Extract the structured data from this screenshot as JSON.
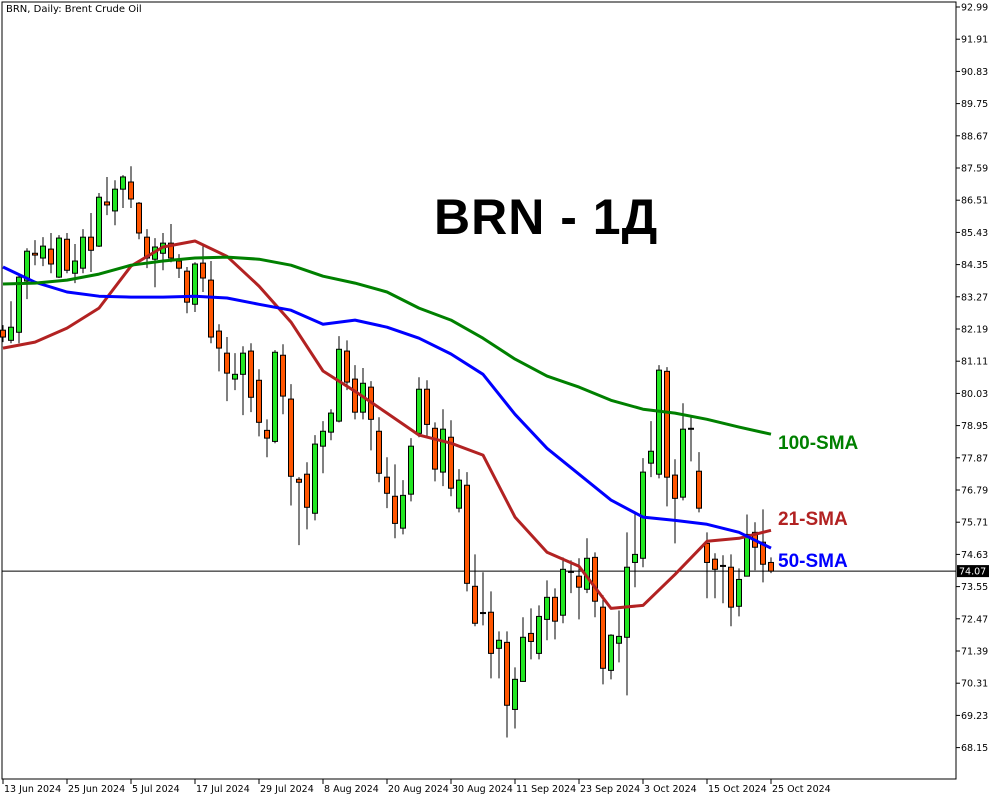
{
  "header": {
    "symbol_line": "BRN, Daily:  Brent Crude Oil"
  },
  "overlay_title": "BRN - 1Д",
  "colors": {
    "bull": "#22e622",
    "bear": "#ff5500",
    "sma21": "#b22222",
    "sma50": "#0000ff",
    "sma100": "#008000",
    "current_price_bg": "#000000"
  },
  "chart_data": {
    "type": "candlestick",
    "title": "BRN, Daily:  Brent Crude Oil",
    "ylim": [
      67.6,
      93.2
    ],
    "y_ticks": [
      "92.99",
      "91.91",
      "90.83",
      "89.75",
      "88.67",
      "87.59",
      "86.51",
      "85.43",
      "84.35",
      "83.27",
      "82.19",
      "81.11",
      "80.03",
      "78.95",
      "77.87",
      "76.79",
      "75.71",
      "74.63",
      "73.55",
      "72.47",
      "71.39",
      "70.31",
      "69.23",
      "68.15"
    ],
    "x_ticks": [
      {
        "date": "2024-06-13",
        "label": "13 Jun 2024"
      },
      {
        "date": "2024-06-25",
        "label": "25 Jun 2024"
      },
      {
        "date": "2024-07-05",
        "label": "5 Jul 2024"
      },
      {
        "date": "2024-07-17",
        "label": "17 Jul 2024"
      },
      {
        "date": "2024-07-29",
        "label": "29 Jul 2024"
      },
      {
        "date": "2024-08-08",
        "label": "8 Aug 2024"
      },
      {
        "date": "2024-08-20",
        "label": "20 Aug 2024"
      },
      {
        "date": "2024-08-30",
        "label": "30 Aug 2024"
      },
      {
        "date": "2024-09-11",
        "label": "11 Sep 2024"
      },
      {
        "date": "2024-09-23",
        "label": "23 Sep 2024"
      },
      {
        "date": "2024-10-03",
        "label": "3 Oct 2024"
      },
      {
        "date": "2024-10-15",
        "label": "15 Oct 2024"
      },
      {
        "date": "2024-10-25",
        "label": "25 Oct 2024"
      }
    ],
    "current_price": "74.07",
    "candles_columns": [
      "date",
      "open",
      "high",
      "low",
      "close"
    ],
    "candles": [
      [
        "2024-06-13",
        82.15,
        82.32,
        81.75,
        81.92
      ],
      [
        "2024-06-14",
        81.81,
        83.12,
        81.71,
        82.25
      ],
      [
        "2024-06-17",
        82.08,
        84.03,
        81.71,
        83.93
      ],
      [
        "2024-06-18",
        83.8,
        84.9,
        83.19,
        84.8
      ],
      [
        "2024-06-19",
        84.73,
        85.17,
        84.33,
        84.67
      ],
      [
        "2024-06-20",
        84.57,
        85.27,
        84.3,
        84.97
      ],
      [
        "2024-06-21",
        84.87,
        85.41,
        84.06,
        84.37
      ],
      [
        "2024-06-24",
        83.93,
        85.34,
        83.9,
        85.24
      ],
      [
        "2024-06-25",
        85.2,
        85.41,
        84.06,
        84.16
      ],
      [
        "2024-06-26",
        84.06,
        85.04,
        83.73,
        84.47
      ],
      [
        "2024-06-27",
        84.23,
        85.54,
        84.06,
        85.27
      ],
      [
        "2024-06-28",
        85.27,
        86.08,
        84.1,
        84.83
      ],
      [
        "2024-07-01",
        84.97,
        86.75,
        84.94,
        86.61
      ],
      [
        "2024-07-02",
        86.45,
        87.29,
        86.01,
        86.35
      ],
      [
        "2024-07-03",
        86.15,
        87.18,
        85.67,
        86.88
      ],
      [
        "2024-07-04",
        86.88,
        87.35,
        86.25,
        87.29
      ],
      [
        "2024-07-05",
        87.12,
        87.65,
        86.25,
        86.55
      ],
      [
        "2024-07-08",
        86.41,
        86.45,
        85.2,
        85.41
      ],
      [
        "2024-07-09",
        85.27,
        85.54,
        84.23,
        84.57
      ],
      [
        "2024-07-10",
        84.53,
        85.24,
        83.59,
        84.94
      ],
      [
        "2024-07-11",
        84.73,
        85.41,
        84.16,
        85.07
      ],
      [
        "2024-07-12",
        85.07,
        85.71,
        84.43,
        84.57
      ],
      [
        "2024-07-15",
        84.47,
        84.7,
        83.9,
        84.23
      ],
      [
        "2024-07-16",
        84.13,
        84.27,
        82.72,
        83.09
      ],
      [
        "2024-07-17",
        83.02,
        84.43,
        82.76,
        84.37
      ],
      [
        "2024-07-18",
        84.4,
        84.97,
        83.43,
        83.9
      ],
      [
        "2024-07-19",
        83.83,
        84.47,
        81.71,
        81.92
      ],
      [
        "2024-07-22",
        82.12,
        82.35,
        80.77,
        81.55
      ],
      [
        "2024-07-23",
        81.38,
        81.92,
        79.77,
        80.71
      ],
      [
        "2024-07-24",
        80.51,
        81.38,
        80.14,
        80.67
      ],
      [
        "2024-07-25",
        80.67,
        81.61,
        79.3,
        81.38
      ],
      [
        "2024-07-26",
        81.45,
        81.71,
        79.4,
        79.9
      ],
      [
        "2024-07-29",
        80.47,
        80.84,
        78.59,
        79.06
      ],
      [
        "2024-07-30",
        78.79,
        79.16,
        77.89,
        78.53
      ],
      [
        "2024-07-31",
        78.42,
        81.48,
        78.36,
        81.41
      ],
      [
        "2024-08-01",
        81.31,
        81.68,
        79.33,
        79.94
      ],
      [
        "2024-08-02",
        79.84,
        80.34,
        76.27,
        77.25
      ],
      [
        "2024-08-05",
        77.15,
        77.22,
        74.94,
        77.05
      ],
      [
        "2024-08-06",
        77.32,
        77.72,
        75.47,
        76.21
      ],
      [
        "2024-08-07",
        76.01,
        78.63,
        75.77,
        78.33
      ],
      [
        "2024-08-08",
        78.26,
        79.1,
        77.35,
        78.76
      ],
      [
        "2024-08-09",
        78.73,
        79.5,
        78.46,
        79.37
      ],
      [
        "2024-08-12",
        79.1,
        81.95,
        79.06,
        81.51
      ],
      [
        "2024-08-13",
        81.45,
        81.81,
        80.14,
        80.41
      ],
      [
        "2024-08-14",
        80.51,
        80.98,
        79.16,
        79.4
      ],
      [
        "2024-08-15",
        79.4,
        80.88,
        79.16,
        80.37
      ],
      [
        "2024-08-16",
        80.24,
        80.44,
        78.12,
        79.16
      ],
      [
        "2024-08-19",
        78.76,
        79.23,
        77.05,
        77.35
      ],
      [
        "2024-08-20",
        77.22,
        77.89,
        76.18,
        76.68
      ],
      [
        "2024-08-21",
        76.58,
        77.65,
        75.17,
        75.67
      ],
      [
        "2024-08-22",
        75.51,
        77.12,
        75.3,
        76.61
      ],
      [
        "2024-08-23",
        76.65,
        78.53,
        76.41,
        78.26
      ],
      [
        "2024-08-26",
        78.69,
        80.57,
        78.56,
        80.17
      ],
      [
        "2024-08-27",
        80.17,
        80.47,
        78.56,
        78.99
      ],
      [
        "2024-08-28",
        78.86,
        79.06,
        77.08,
        77.49
      ],
      [
        "2024-08-29",
        77.39,
        79.5,
        76.92,
        78.83
      ],
      [
        "2024-08-30",
        78.56,
        79.13,
        76.58,
        76.85
      ],
      [
        "2024-09-02",
        76.18,
        77.49,
        76.04,
        77.12
      ],
      [
        "2024-09-03",
        76.95,
        77.39,
        73.39,
        73.66
      ],
      [
        "2024-09-04",
        73.56,
        74.63,
        72.22,
        72.32
      ],
      [
        "2024-09-05",
        72.68,
        74.03,
        72.25,
        72.65
      ],
      [
        "2024-09-06",
        72.69,
        73.39,
        70.47,
        71.31
      ],
      [
        "2024-09-09",
        71.48,
        72.05,
        70.47,
        71.75
      ],
      [
        "2024-09-10",
        71.68,
        72.05,
        68.49,
        69.57
      ],
      [
        "2024-09-11",
        69.43,
        70.84,
        68.79,
        70.44
      ],
      [
        "2024-09-12",
        70.37,
        72.52,
        70.37,
        71.85
      ],
      [
        "2024-09-13",
        71.98,
        72.82,
        71.11,
        71.71
      ],
      [
        "2024-09-16",
        71.31,
        72.92,
        71.11,
        72.55
      ],
      [
        "2024-09-17",
        72.45,
        73.76,
        71.75,
        73.19
      ],
      [
        "2024-09-18",
        73.19,
        73.49,
        71.78,
        72.39
      ],
      [
        "2024-09-19",
        72.59,
        74.53,
        72.32,
        74.13
      ],
      [
        "2024-09-20",
        74.06,
        74.43,
        73.33,
        74.03
      ],
      [
        "2024-09-23",
        73.9,
        74.5,
        72.45,
        73.53
      ],
      [
        "2024-09-24",
        73.46,
        75.17,
        73.33,
        74.5
      ],
      [
        "2024-09-25",
        74.53,
        74.7,
        72.52,
        73.06
      ],
      [
        "2024-09-26",
        72.86,
        73.26,
        70.27,
        70.81
      ],
      [
        "2024-09-27",
        70.74,
        71.95,
        70.44,
        71.92
      ],
      [
        "2024-09-30",
        71.65,
        72.75,
        71.01,
        71.88
      ],
      [
        "2024-10-01",
        71.85,
        75.37,
        69.9,
        74.2
      ],
      [
        "2024-10-02",
        74.36,
        76.04,
        73.53,
        74.63
      ],
      [
        "2024-10-03",
        74.5,
        77.86,
        74.2,
        77.39
      ],
      [
        "2024-10-04",
        77.69,
        79.1,
        77.22,
        78.09
      ],
      [
        "2024-10-07",
        77.32,
        80.98,
        77.18,
        80.81
      ],
      [
        "2024-10-08",
        80.77,
        80.91,
        76.24,
        77.22
      ],
      [
        "2024-10-09",
        77.29,
        77.82,
        75.0,
        76.51
      ],
      [
        "2024-10-10",
        76.55,
        79.7,
        76.44,
        78.83
      ],
      [
        "2024-10-11",
        78.86,
        79.23,
        77.75,
        78.83
      ],
      [
        "2024-10-14",
        77.42,
        78.06,
        76.04,
        76.18
      ],
      [
        "2024-10-15",
        75.0,
        75.37,
        73.16,
        74.36
      ],
      [
        "2024-10-16",
        74.47,
        74.67,
        73.16,
        74.13
      ],
      [
        "2024-10-17",
        74.26,
        74.6,
        72.99,
        74.23
      ],
      [
        "2024-10-18",
        74.2,
        74.63,
        72.22,
        72.86
      ],
      [
        "2024-10-21",
        72.89,
        74.16,
        72.55,
        73.79
      ],
      [
        "2024-10-22",
        73.9,
        75.97,
        73.9,
        75.3
      ],
      [
        "2024-10-23",
        75.37,
        75.71,
        74.1,
        74.87
      ],
      [
        "2024-10-24",
        75.04,
        76.14,
        73.69,
        74.3
      ],
      [
        "2024-10-25",
        74.36,
        74.53,
        74.0,
        74.07
      ]
    ],
    "series": [
      {
        "name": "21-SMA",
        "color": "#b22222",
        "points": [
          [
            "2024-06-13",
            81.55
          ],
          [
            "2024-06-19",
            81.75
          ],
          [
            "2024-06-25",
            82.22
          ],
          [
            "2024-07-01",
            82.89
          ],
          [
            "2024-07-05",
            84.3
          ],
          [
            "2024-07-11",
            84.94
          ],
          [
            "2024-07-17",
            85.14
          ],
          [
            "2024-07-23",
            84.63
          ],
          [
            "2024-07-29",
            83.63
          ],
          [
            "2024-08-02",
            82.42
          ],
          [
            "2024-08-08",
            80.78
          ],
          [
            "2024-08-14",
            80.1
          ],
          [
            "2024-08-20",
            79.37
          ],
          [
            "2024-08-26",
            78.63
          ],
          [
            "2024-08-30",
            78.36
          ],
          [
            "2024-09-05",
            77.96
          ],
          [
            "2024-09-11",
            75.88
          ],
          [
            "2024-09-17",
            74.7
          ],
          [
            "2024-09-23",
            74.23
          ],
          [
            "2024-09-27",
            72.82
          ],
          [
            "2024-10-03",
            72.92
          ],
          [
            "2024-10-09",
            73.96
          ],
          [
            "2024-10-15",
            75.07
          ],
          [
            "2024-10-21",
            75.17
          ],
          [
            "2024-10-25",
            75.44
          ]
        ]
      },
      {
        "name": "50-SMA",
        "color": "#0000ff",
        "points": [
          [
            "2024-06-13",
            84.27
          ],
          [
            "2024-06-19",
            83.76
          ],
          [
            "2024-06-25",
            83.43
          ],
          [
            "2024-07-01",
            83.29
          ],
          [
            "2024-07-05",
            83.26
          ],
          [
            "2024-07-11",
            83.26
          ],
          [
            "2024-07-17",
            83.29
          ],
          [
            "2024-07-23",
            83.23
          ],
          [
            "2024-07-29",
            83.02
          ],
          [
            "2024-08-02",
            82.82
          ],
          [
            "2024-08-08",
            82.35
          ],
          [
            "2024-08-14",
            82.49
          ],
          [
            "2024-08-20",
            82.25
          ],
          [
            "2024-08-26",
            81.88
          ],
          [
            "2024-08-30",
            81.35
          ],
          [
            "2024-09-05",
            80.67
          ],
          [
            "2024-09-11",
            79.33
          ],
          [
            "2024-09-17",
            78.19
          ],
          [
            "2024-09-23",
            77.32
          ],
          [
            "2024-09-27",
            76.45
          ],
          [
            "2024-10-03",
            75.88
          ],
          [
            "2024-10-09",
            75.77
          ],
          [
            "2024-10-15",
            75.64
          ],
          [
            "2024-10-21",
            75.37
          ],
          [
            "2024-10-25",
            74.84
          ]
        ]
      },
      {
        "name": "100-SMA",
        "color": "#008000",
        "points": [
          [
            "2024-06-13",
            83.7
          ],
          [
            "2024-06-19",
            83.73
          ],
          [
            "2024-06-25",
            83.83
          ],
          [
            "2024-07-01",
            84.03
          ],
          [
            "2024-07-05",
            84.33
          ],
          [
            "2024-07-11",
            84.47
          ],
          [
            "2024-07-17",
            84.57
          ],
          [
            "2024-07-23",
            84.6
          ],
          [
            "2024-07-29",
            84.53
          ],
          [
            "2024-08-02",
            84.33
          ],
          [
            "2024-08-08",
            83.96
          ],
          [
            "2024-08-14",
            83.73
          ],
          [
            "2024-08-20",
            83.43
          ],
          [
            "2024-08-26",
            82.89
          ],
          [
            "2024-08-30",
            82.49
          ],
          [
            "2024-09-05",
            81.88
          ],
          [
            "2024-09-11",
            81.18
          ],
          [
            "2024-09-17",
            80.61
          ],
          [
            "2024-09-23",
            80.24
          ],
          [
            "2024-09-27",
            79.8
          ],
          [
            "2024-10-03",
            79.5
          ],
          [
            "2024-10-09",
            79.37
          ],
          [
            "2024-10-15",
            79.16
          ],
          [
            "2024-10-21",
            78.9
          ],
          [
            "2024-10-25",
            78.66
          ]
        ]
      }
    ]
  },
  "ma_labels": {
    "sma100": "100-SMA",
    "sma21": "21-SMA",
    "sma50": "50-SMA"
  }
}
